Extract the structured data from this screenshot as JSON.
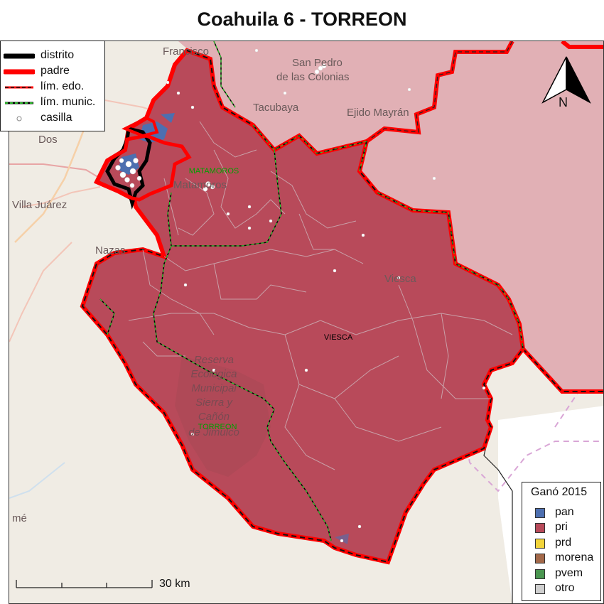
{
  "title": "Coahuila 6 - TORREON",
  "legend_lines": [
    {
      "label": "distrito",
      "style": "distrito"
    },
    {
      "label": "padre",
      "style": "padre"
    },
    {
      "label": "lím. edo.",
      "style": "edo"
    },
    {
      "label": "lím. munic.",
      "style": "munic"
    },
    {
      "label": "casilla",
      "style": "casilla"
    }
  ],
  "legend_party": {
    "title": "Ganó 2015",
    "items": [
      {
        "label": "pan",
        "color": "#4d6fb0"
      },
      {
        "label": "pri",
        "color": "#b84a5a"
      },
      {
        "label": "prd",
        "color": "#f2d43a"
      },
      {
        "label": "morena",
        "color": "#a3694a"
      },
      {
        "label": "pvem",
        "color": "#4a9650"
      },
      {
        "label": "otro",
        "color": "#cfcfcf"
      }
    ]
  },
  "municipio_labels": {
    "matamoros": "MATAMOROS",
    "viesca": "VIESCA",
    "torreon": "TORREON"
  },
  "basemap_labels": {
    "francisco": "Francisco",
    "san_pedro_1": "San Pedro",
    "san_pedro_2": "de las Colonias",
    "tacubaya": "Tacubaya",
    "ejido_mayran": "Ejido Mayrán",
    "dos": "Dos",
    "villa_juarez": "Villa Juárez",
    "matamoros_town": "Matamoros",
    "nazas": "Nazas",
    "viesca_town": "Viesca",
    "reserva_1": "Reserva",
    "reserva_2": "Ecológica",
    "reserva_3": "Municipal",
    "reserva_4": "Sierra y",
    "reserva_5": "Cañón",
    "reserva_6": "de Jimulco",
    "me": "mé"
  },
  "scale_bar": {
    "label": "30 km"
  },
  "north": {
    "label": "N"
  },
  "colors": {
    "district_fill": "#b84a5a",
    "parent_fill": "#e1b0b5",
    "basemap": "#f0ece4",
    "distrito_line": "#000000",
    "padre_line": "#ff0000"
  }
}
